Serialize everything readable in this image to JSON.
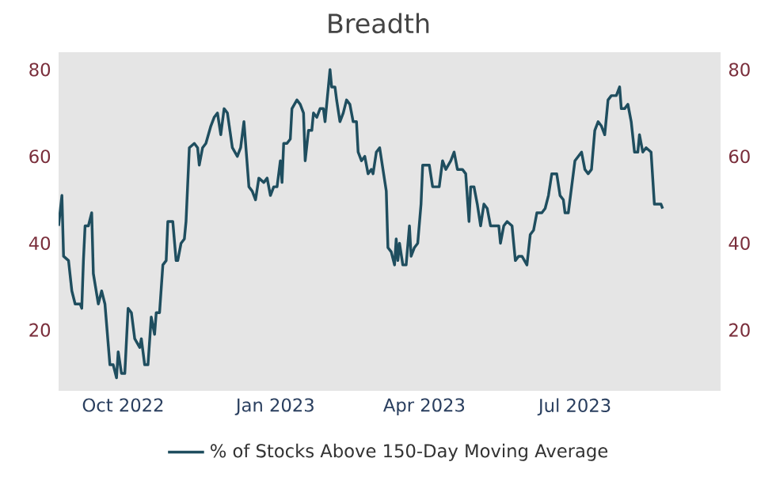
{
  "chart_data": {
    "type": "line",
    "title": "Breadth",
    "x": [
      "2022-08-23",
      "2022-08-25",
      "2022-08-26",
      "2022-08-29",
      "2022-08-31",
      "2022-09-02",
      "2022-09-05",
      "2022-09-06",
      "2022-09-07",
      "2022-09-08",
      "2022-09-10",
      "2022-09-12",
      "2022-09-13",
      "2022-09-16",
      "2022-09-18",
      "2022-09-20",
      "2022-09-23",
      "2022-09-25",
      "2022-09-27",
      "2022-09-28",
      "2022-09-30",
      "2022-10-02",
      "2022-10-04",
      "2022-10-06",
      "2022-10-08",
      "2022-10-11",
      "2022-10-12",
      "2022-10-14",
      "2022-10-16",
      "2022-10-18",
      "2022-10-20",
      "2022-10-21",
      "2022-10-23",
      "2022-10-25",
      "2022-10-27",
      "2022-10-28",
      "2022-10-31",
      "2022-11-02",
      "2022-11-03",
      "2022-11-05",
      "2022-11-07",
      "2022-11-08",
      "2022-11-10",
      "2022-11-13",
      "2022-11-15",
      "2022-11-16",
      "2022-11-18",
      "2022-11-20",
      "2022-11-23",
      "2022-11-25",
      "2022-11-27",
      "2022-11-29",
      "2022-12-01",
      "2022-12-03",
      "2022-12-06",
      "2022-12-09",
      "2022-12-11",
      "2022-12-13",
      "2022-12-16",
      "2022-12-18",
      "2022-12-20",
      "2022-12-22",
      "2022-12-25",
      "2022-12-27",
      "2022-12-29",
      "2022-12-31",
      "2023-01-02",
      "2023-01-04",
      "2023-01-05",
      "2023-01-06",
      "2023-01-08",
      "2023-01-10",
      "2023-01-11",
      "2023-01-14",
      "2023-01-16",
      "2023-01-18",
      "2023-01-19",
      "2023-01-21",
      "2023-01-23",
      "2023-01-24",
      "2023-01-26",
      "2023-01-28",
      "2023-01-30",
      "2023-01-31",
      "2023-02-03",
      "2023-02-04",
      "2023-02-06",
      "2023-02-07",
      "2023-02-09",
      "2023-02-11",
      "2023-02-13",
      "2023-02-15",
      "2023-02-17",
      "2023-02-19",
      "2023-02-20",
      "2023-02-22",
      "2023-02-24",
      "2023-02-26",
      "2023-02-28",
      "2023-03-01",
      "2023-03-03",
      "2023-03-05",
      "2023-03-07",
      "2023-03-09",
      "2023-03-10",
      "2023-03-12",
      "2023-03-14",
      "2023-03-15",
      "2023-03-16",
      "2023-03-17",
      "2023-03-19",
      "2023-03-21",
      "2023-03-23",
      "2023-03-24",
      "2023-03-26",
      "2023-03-28",
      "2023-03-30",
      "2023-03-31",
      "2023-04-04",
      "2023-04-06",
      "2023-04-08",
      "2023-04-10",
      "2023-04-12",
      "2023-04-14",
      "2023-04-17",
      "2023-04-19",
      "2023-04-21",
      "2023-04-24",
      "2023-04-26",
      "2023-04-28",
      "2023-04-29",
      "2023-05-01",
      "2023-05-03",
      "2023-05-05",
      "2023-05-07",
      "2023-05-09",
      "2023-05-11",
      "2023-05-14",
      "2023-05-16",
      "2023-05-17",
      "2023-05-19",
      "2023-05-21",
      "2023-05-24",
      "2023-05-26",
      "2023-05-28",
      "2023-05-30",
      "2023-06-02",
      "2023-06-04",
      "2023-06-06",
      "2023-06-08",
      "2023-06-11",
      "2023-06-13",
      "2023-06-15",
      "2023-06-17",
      "2023-06-20",
      "2023-06-22",
      "2023-06-24",
      "2023-06-25",
      "2023-06-27",
      "2023-06-29",
      "2023-07-01",
      "2023-07-03",
      "2023-07-05",
      "2023-07-07",
      "2023-07-09",
      "2023-07-11",
      "2023-07-13",
      "2023-07-15",
      "2023-07-17",
      "2023-07-19",
      "2023-07-21",
      "2023-07-23",
      "2023-07-26",
      "2023-07-28",
      "2023-07-29",
      "2023-07-31",
      "2023-08-02",
      "2023-08-04",
      "2023-08-06",
      "2023-08-08",
      "2023-08-09",
      "2023-08-11",
      "2023-08-13",
      "2023-08-16",
      "2023-08-18",
      "2023-08-20",
      "2023-08-22",
      "2023-08-23"
    ],
    "series": [
      {
        "name": "% of Stocks Above 150-Day Moving Average",
        "color": "#1f4e5f",
        "values": [
          44,
          51,
          37,
          36,
          29,
          26,
          26,
          25,
          36,
          44,
          44,
          47,
          33,
          26,
          29,
          26,
          12,
          12,
          9,
          15,
          10,
          10,
          25,
          24,
          18,
          16,
          18,
          12,
          12,
          23,
          19,
          24,
          24,
          35,
          36,
          45,
          45,
          36,
          36,
          40,
          41,
          45,
          62,
          63,
          62,
          58,
          62,
          63,
          67,
          69,
          70,
          65,
          71,
          70,
          62,
          60,
          62,
          68,
          53,
          52,
          50,
          55,
          54,
          55,
          51,
          53,
          53,
          59,
          54,
          63,
          63,
          64,
          71,
          73,
          72,
          70,
          59,
          66,
          66,
          70,
          69,
          71,
          71,
          68,
          80,
          76,
          76,
          73,
          68,
          70,
          73,
          72,
          68,
          68,
          61,
          59,
          60,
          56,
          57,
          56,
          61,
          62,
          57,
          52,
          39,
          38,
          35,
          41,
          36,
          40,
          35,
          35,
          44,
          37,
          39,
          40,
          49,
          58,
          58,
          53,
          53,
          53,
          59,
          57,
          59,
          61,
          57,
          57,
          56,
          45,
          53,
          53,
          49,
          44,
          49,
          48,
          44,
          44,
          44,
          40,
          44,
          45,
          44,
          36,
          37,
          37,
          35,
          42,
          43,
          47,
          47,
          48,
          51,
          56,
          56,
          51,
          50,
          47,
          47,
          53,
          59,
          60,
          61,
          57,
          56,
          57,
          66,
          68,
          67,
          65,
          73,
          74,
          74,
          76,
          71,
          71,
          72,
          68,
          61,
          61,
          65,
          61,
          62,
          61,
          49,
          49,
          49,
          48
        ]
      }
    ],
    "xlim": [
      "2022-08-23",
      "2023-09-27"
    ],
    "xticks": [
      {
        "value": "2022-10-01",
        "label": "Oct 2022"
      },
      {
        "value": "2023-01-01",
        "label": "Jan 2023"
      },
      {
        "value": "2023-04-01",
        "label": "Apr 2023"
      },
      {
        "value": "2023-07-01",
        "label": "Jul 2023"
      }
    ],
    "ylim": [
      6,
      84
    ],
    "yticks": [
      20,
      40,
      60,
      80
    ],
    "y2lim": [
      6,
      84
    ],
    "y2ticks": [
      20,
      40,
      60,
      80
    ],
    "legend": "bottom"
  }
}
